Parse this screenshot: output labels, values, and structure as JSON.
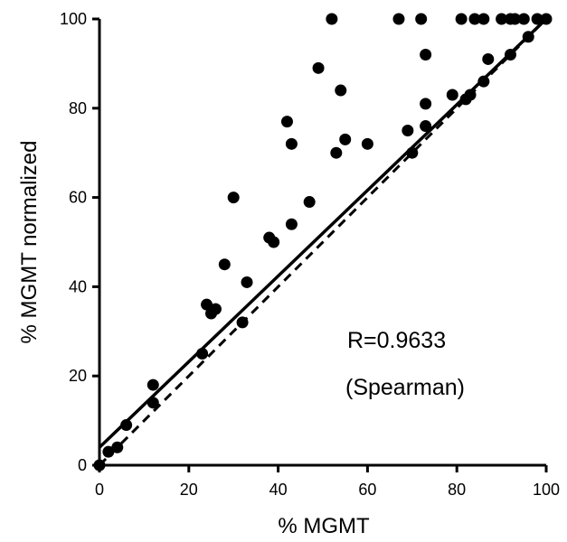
{
  "chart_data": {
    "type": "scatter",
    "xlabel": "% MGMT",
    "ylabel": "% MGMT normalized",
    "xlim": [
      0,
      100
    ],
    "ylim": [
      0,
      100
    ],
    "xticks": [
      "0",
      "20",
      "40",
      "60",
      "80",
      "100"
    ],
    "yticks": [
      "0",
      "20",
      "40",
      "60",
      "80",
      "100"
    ],
    "grid": false,
    "annotations": [
      "R=0.9633",
      "(Spearman)"
    ],
    "fit_line": {
      "style": "solid",
      "x": [
        0,
        100
      ],
      "y": [
        4,
        100
      ]
    },
    "identity_line": {
      "style": "dashed",
      "x": [
        0,
        100
      ],
      "y": [
        0,
        100
      ]
    },
    "points": [
      {
        "x": 0,
        "y": 0
      },
      {
        "x": 2,
        "y": 3
      },
      {
        "x": 4,
        "y": 4
      },
      {
        "x": 6,
        "y": 9
      },
      {
        "x": 12,
        "y": 14
      },
      {
        "x": 12,
        "y": 18
      },
      {
        "x": 23,
        "y": 25
      },
      {
        "x": 24,
        "y": 36
      },
      {
        "x": 25,
        "y": 34
      },
      {
        "x": 26,
        "y": 35
      },
      {
        "x": 28,
        "y": 45
      },
      {
        "x": 30,
        "y": 60
      },
      {
        "x": 32,
        "y": 32
      },
      {
        "x": 33,
        "y": 41
      },
      {
        "x": 38,
        "y": 51
      },
      {
        "x": 39,
        "y": 50
      },
      {
        "x": 42,
        "y": 77
      },
      {
        "x": 43,
        "y": 72
      },
      {
        "x": 43,
        "y": 54
      },
      {
        "x": 47,
        "y": 59
      },
      {
        "x": 49,
        "y": 89
      },
      {
        "x": 52,
        "y": 100
      },
      {
        "x": 53,
        "y": 70
      },
      {
        "x": 54,
        "y": 84
      },
      {
        "x": 55,
        "y": 73
      },
      {
        "x": 60,
        "y": 72
      },
      {
        "x": 67,
        "y": 100
      },
      {
        "x": 69,
        "y": 75
      },
      {
        "x": 70,
        "y": 70
      },
      {
        "x": 72,
        "y": 100
      },
      {
        "x": 73,
        "y": 92
      },
      {
        "x": 73,
        "y": 81
      },
      {
        "x": 73,
        "y": 76
      },
      {
        "x": 79,
        "y": 83
      },
      {
        "x": 81,
        "y": 100
      },
      {
        "x": 82,
        "y": 82
      },
      {
        "x": 83,
        "y": 83
      },
      {
        "x": 84,
        "y": 100
      },
      {
        "x": 86,
        "y": 100
      },
      {
        "x": 86,
        "y": 86
      },
      {
        "x": 87,
        "y": 91
      },
      {
        "x": 90,
        "y": 100
      },
      {
        "x": 92,
        "y": 100
      },
      {
        "x": 92,
        "y": 92
      },
      {
        "x": 93,
        "y": 100
      },
      {
        "x": 95,
        "y": 100
      },
      {
        "x": 96,
        "y": 96
      },
      {
        "x": 98,
        "y": 100
      },
      {
        "x": 100,
        "y": 100
      }
    ]
  }
}
